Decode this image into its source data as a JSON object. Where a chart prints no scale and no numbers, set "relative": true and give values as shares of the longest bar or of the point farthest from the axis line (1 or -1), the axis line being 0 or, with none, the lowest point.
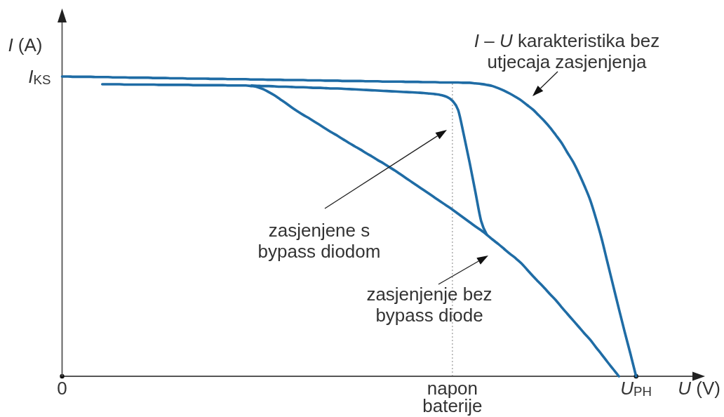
{
  "chart_data": {
    "type": "line",
    "relative": true,
    "xlabel": "U (V)",
    "ylabel": "I (A)",
    "categories": [
      "0",
      null,
      null,
      null,
      null,
      null,
      null,
      null,
      null,
      null,
      null,
      null,
      null,
      null,
      null,
      null,
      null,
      null,
      null,
      null,
      null,
      null,
      null,
      null,
      null,
      null,
      null,
      null,
      null,
      null,
      null,
      null,
      null,
      null,
      null,
      null,
      null,
      null,
      null,
      null,
      null,
      null,
      null,
      null,
      null,
      null,
      null,
      null,
      null,
      null,
      null,
      null,
      null,
      null,
      null,
      null,
      null,
      null,
      null,
      null,
      null,
      null,
      null,
      null,
      null,
      null,
      null,
      null,
      "napon baterije",
      null,
      null,
      null,
      null,
      null,
      null,
      null,
      null,
      null,
      null,
      null,
      null,
      null,
      null,
      null,
      null,
      null,
      null,
      null,
      null,
      null,
      null,
      null,
      null,
      null,
      null,
      null,
      null,
      null,
      null,
      null,
      "U$_{PH}$"
    ],
    "ref_lines": [
      {
        "axis": "x",
        "value": "napon baterije",
        "color": "#999999",
        "line_style": "dotted"
      }
    ],
    "annotations": [
      "I – U karakteristika bez utjecaja zasjenjenja",
      "zasjenjene s bypass diodom",
      "zasjenjenje bez bypass diode",
      "I$_{KS}$"
    ],
    "series": [
      {
        "color": "#1f6ca5",
        "values": [
          1,
          1,
          0.999,
          0.999,
          0.999,
          0.999,
          0.998,
          0.998,
          0.998,
          0.997,
          0.997,
          0.997,
          0.996,
          0.996,
          0.996,
          0.996,
          0.995,
          0.995,
          0.995,
          0.994,
          0.994,
          0.994,
          0.993,
          0.993,
          0.993,
          0.993,
          0.992,
          0.992,
          0.992,
          0.991,
          0.991,
          0.991,
          0.991,
          0.99,
          0.99,
          0.99,
          0.989,
          0.989,
          0.989,
          0.988,
          0.988,
          0.988,
          0.988,
          0.987,
          0.987,
          0.987,
          0.986,
          0.986,
          0.986,
          0.985,
          0.985,
          0.985,
          0.985,
          0.984,
          0.984,
          0.984,
          0.983,
          0.983,
          0.983,
          0.983,
          0.982,
          0.982,
          0.982,
          0.981,
          0.981,
          0.981,
          0.98,
          0.98,
          0.98,
          0.98,
          0.979,
          0.979,
          0.977,
          0.975,
          0.972,
          0.968,
          0.961,
          0.953,
          0.943,
          0.932,
          0.92,
          0.905,
          0.89,
          0.871,
          0.852,
          0.83,
          0.805,
          0.779,
          0.747,
          0.716,
          0.678,
          0.635,
          0.588,
          0.527,
          0.459,
          0.381,
          0.303,
          0.225,
          0.149,
          0.076,
          0
        ]
      },
      {
        "color": "#1f6ca5",
        "values": [
          null,
          null,
          null,
          null,
          null,
          null,
          null,
          null,
          null,
          null,
          null,
          null,
          null,
          null,
          null,
          null,
          null,
          null,
          null,
          null,
          null,
          null,
          null,
          null,
          null,
          null,
          null,
          null,
          null,
          null,
          null,
          null,
          null,
          0.97,
          0.969,
          0.968,
          0.968,
          0.967,
          0.966,
          0.966,
          0.965,
          0.964,
          0.964,
          0.963,
          0.962,
          0.962,
          0.961,
          0.96,
          0.96,
          0.959,
          0.958,
          0.957,
          0.956,
          0.955,
          0.954,
          0.953,
          0.952,
          0.951,
          0.95,
          0.949,
          0.948,
          0.947,
          0.946,
          0.945,
          0.943,
          0.941,
          0.938,
          0.932,
          0.919,
          0.888,
          0.804,
          0.713,
          0.615,
          0.518,
          0.472,
          null,
          null,
          null,
          null,
          null,
          null,
          null,
          null,
          null,
          null,
          null,
          null,
          null,
          null,
          null,
          null,
          null,
          null,
          null,
          null,
          null,
          null,
          null,
          null,
          null,
          null
        ]
      },
      {
        "color": "#1f6ca5",
        "values": [
          null,
          null,
          null,
          null,
          null,
          null,
          null,
          0.974,
          0.974,
          0.974,
          0.974,
          0.973,
          0.973,
          0.973,
          0.973,
          0.973,
          0.973,
          0.972,
          0.972,
          0.972,
          0.972,
          0.972,
          0.972,
          0.971,
          0.971,
          0.971,
          0.971,
          0.971,
          0.971,
          0.97,
          0.97,
          0.97,
          0.97,
          0.968,
          0.965,
          0.958,
          0.948,
          0.937,
          0.924,
          0.911,
          0.897,
          0.884,
          0.872,
          0.861,
          0.849,
          0.837,
          0.825,
          0.813,
          0.802,
          0.79,
          0.778,
          0.767,
          0.756,
          0.744,
          0.733,
          0.721,
          0.71,
          0.698,
          0.686,
          0.673,
          0.66,
          0.647,
          0.634,
          0.621,
          0.608,
          0.595,
          0.582,
          0.569,
          0.556,
          0.542,
          0.528,
          0.514,
          0.5,
          0.487,
          0.472,
          0.456,
          0.441,
          0.425,
          0.409,
          0.394,
          0.377,
          0.356,
          0.335,
          0.315,
          0.295,
          0.274,
          0.254,
          0.231,
          0.209,
          0.187,
          0.165,
          0.143,
          0.122,
          0.097,
          0.073,
          0.048,
          0.024,
          0,
          null,
          null,
          null
        ]
      }
    ]
  }
}
